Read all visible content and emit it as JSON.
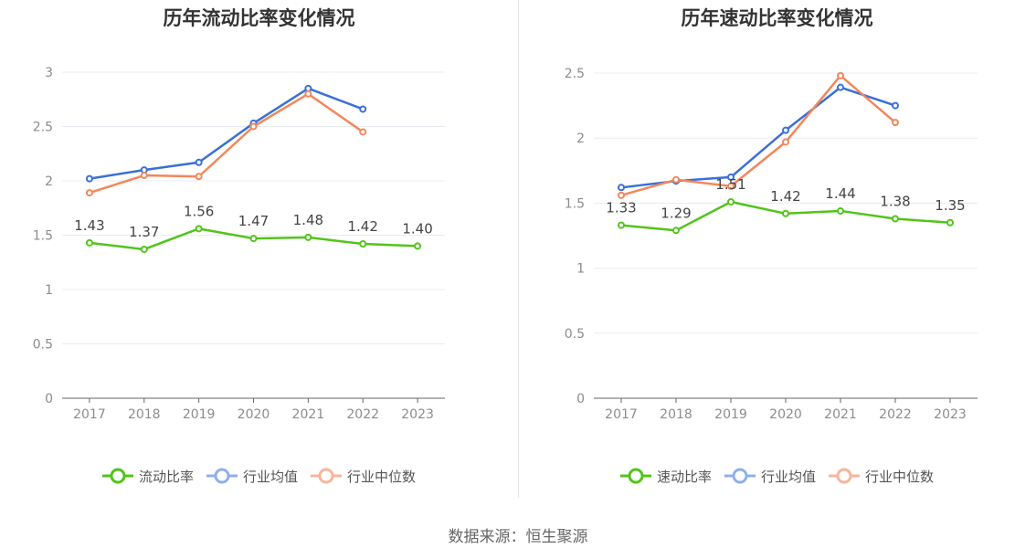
{
  "source_text": "数据来源：恒生聚源",
  "colors": {
    "company": "#52c41a",
    "industry_avg": "#3a6fd8",
    "industry_median": "#f2875b",
    "grid": "#e8ecf2",
    "axis": "#666666"
  },
  "chart_data": [
    {
      "type": "line",
      "title": "历年流动比率变化情况",
      "categories": [
        "2017",
        "2018",
        "2019",
        "2020",
        "2021",
        "2022",
        "2023"
      ],
      "ylim": [
        0,
        3
      ],
      "yticks": [
        "0",
        "0.5",
        "1",
        "1.5",
        "2",
        "2.5",
        "3"
      ],
      "grid": true,
      "legend_position": "bottom",
      "series": [
        {
          "name": "流动比率",
          "values": [
            1.43,
            1.37,
            1.56,
            1.47,
            1.48,
            1.42,
            1.4
          ],
          "data_labels": [
            "1.43",
            "1.37",
            "1.56",
            "1.47",
            "1.48",
            "1.42",
            "1.40"
          ]
        },
        {
          "name": "行业均值",
          "values": [
            2.02,
            2.1,
            2.17,
            2.53,
            2.85,
            2.66,
            null
          ]
        },
        {
          "name": "行业中位数",
          "values": [
            1.89,
            2.05,
            2.04,
            2.5,
            2.8,
            2.45,
            null
          ]
        }
      ]
    },
    {
      "type": "line",
      "title": "历年速动比率变化情况",
      "categories": [
        "2017",
        "2018",
        "2019",
        "2020",
        "2021",
        "2022",
        "2023"
      ],
      "ylim": [
        0,
        2.5
      ],
      "yticks": [
        "0",
        "0.5",
        "1",
        "1.5",
        "2",
        "2.5"
      ],
      "grid": true,
      "legend_position": "bottom",
      "series": [
        {
          "name": "速动比率",
          "values": [
            1.33,
            1.29,
            1.51,
            1.42,
            1.44,
            1.38,
            1.35
          ],
          "data_labels": [
            "1.33",
            "1.29",
            "1.51",
            "1.42",
            "1.44",
            "1.38",
            "1.35"
          ]
        },
        {
          "name": "行业均值",
          "values": [
            1.62,
            1.67,
            1.7,
            2.06,
            2.39,
            2.25,
            null
          ]
        },
        {
          "name": "行业中位数",
          "values": [
            1.56,
            1.68,
            1.63,
            1.97,
            2.48,
            2.12,
            null
          ]
        }
      ]
    }
  ]
}
